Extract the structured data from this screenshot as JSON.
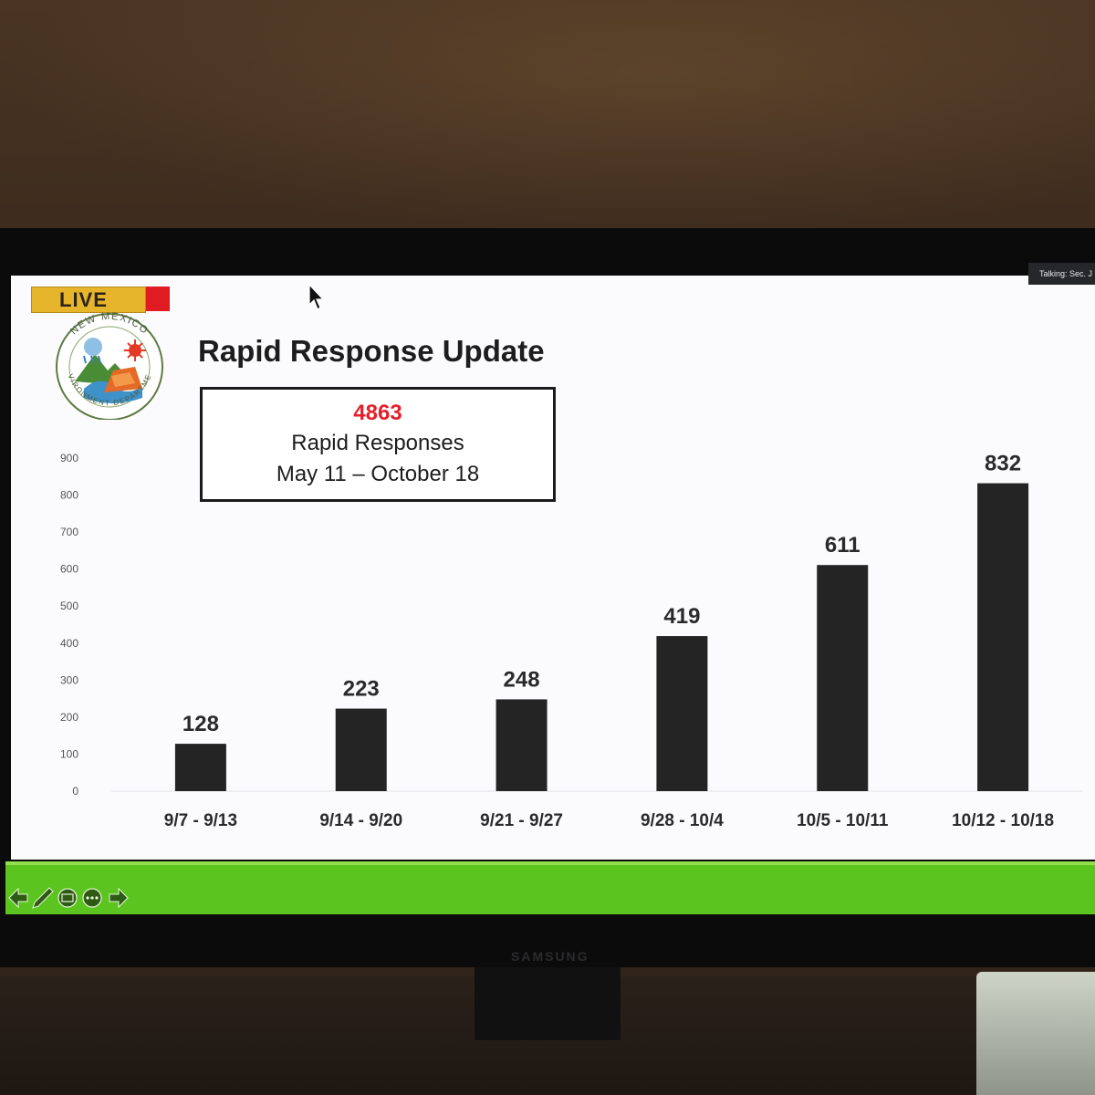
{
  "overlay": {
    "live_label": "LIVE",
    "talking_label": "Talking: Sec. J"
  },
  "slide": {
    "title": "Rapid Response Update",
    "summary": {
      "total": "4863",
      "label": "Rapid Responses",
      "range": "May 11 – October 18"
    }
  },
  "logo": {
    "icon": "nm-environment-department-seal-icon",
    "text": "NEW MEXICO ENVIRONMENT DEPARTMENT"
  },
  "colors": {
    "bar": "#242424",
    "total": "#e3202a",
    "live": "#e6b52b",
    "live_accent": "#e11b22",
    "toolbar": "#5bc41e"
  },
  "chart_data": {
    "type": "bar",
    "categories": [
      "9/7 - 9/13",
      "9/14 - 9/20",
      "9/21 - 9/27",
      "9/28 - 10/4",
      "10/5 - 10/11",
      "10/12 - 10/18"
    ],
    "values": [
      128,
      223,
      248,
      419,
      611,
      832
    ],
    "ylim": [
      0,
      900
    ],
    "yticks": [
      0,
      100,
      200,
      300,
      400,
      500,
      600,
      700,
      800,
      900
    ],
    "data_labels": true,
    "grid": false
  },
  "toolbar": {
    "icons": [
      "previous-arrow-icon",
      "pen-icon",
      "subtitles-icon",
      "more-options-icon",
      "next-arrow-icon"
    ]
  },
  "tv": {
    "brand": "SAMSUNG"
  }
}
